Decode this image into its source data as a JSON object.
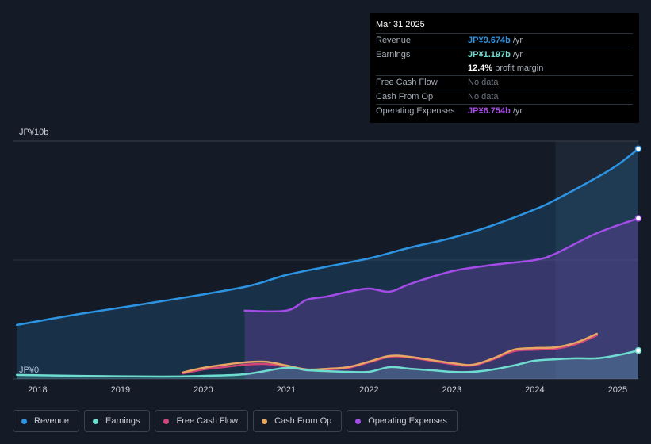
{
  "chart_data": {
    "type": "area",
    "title": "",
    "y_axis": {
      "top_label": "JP¥10b",
      "bottom_label": "JP¥0",
      "ylim": [
        0,
        10
      ]
    },
    "x_ticks": [
      "2018",
      "2019",
      "2020",
      "2021",
      "2022",
      "2023",
      "2024",
      "2025"
    ],
    "xlim": [
      2017.7,
      2025.25
    ],
    "forecast_start": 2024.25,
    "series": [
      {
        "name": "Revenue",
        "color": "#2d94e3",
        "fill": true,
        "x": [
          2017.75,
          2018.5,
          2019.5,
          2020.5,
          2021.0,
          2021.5,
          2022.0,
          2022.5,
          2023.0,
          2023.5,
          2024.0,
          2024.25,
          2024.75,
          2025.0,
          2025.25
        ],
        "values": [
          2.27,
          2.73,
          3.27,
          3.87,
          4.37,
          4.73,
          5.07,
          5.53,
          5.93,
          6.47,
          7.13,
          7.53,
          8.47,
          9.0,
          9.674
        ]
      },
      {
        "name": "Operating Expenses",
        "color": "#a44ce8",
        "fill": true,
        "x": [
          2020.5,
          2021.0,
          2021.25,
          2021.5,
          2021.75,
          2022.0,
          2022.25,
          2022.5,
          2023.0,
          2023.5,
          2024.0,
          2024.25,
          2024.75,
          2025.25
        ],
        "values": [
          2.87,
          2.87,
          3.33,
          3.47,
          3.67,
          3.8,
          3.67,
          4.0,
          4.53,
          4.8,
          5.0,
          5.27,
          6.13,
          6.754
        ]
      },
      {
        "name": "Cash From Op",
        "color": "#e8a664",
        "fill": false,
        "x": [
          2019.75,
          2020.0,
          2020.25,
          2020.5,
          2020.75,
          2021.0,
          2021.25,
          2021.5,
          2021.75,
          2022.0,
          2022.25,
          2022.5,
          2023.0,
          2023.25,
          2023.5,
          2023.75,
          2024.0,
          2024.25,
          2024.5,
          2024.75
        ],
        "values": [
          0.27,
          0.47,
          0.6,
          0.7,
          0.73,
          0.57,
          0.4,
          0.43,
          0.5,
          0.73,
          0.97,
          0.93,
          0.67,
          0.6,
          0.87,
          1.23,
          1.3,
          1.33,
          1.53,
          1.9
        ]
      },
      {
        "name": "Free Cash Flow",
        "color": "#d0447a",
        "fill": false,
        "x": [
          2019.75,
          2020.0,
          2020.25,
          2020.5,
          2020.75,
          2021.0,
          2021.25,
          2021.5,
          2021.75,
          2022.0,
          2022.25,
          2022.5,
          2023.0,
          2023.25,
          2023.5,
          2023.75,
          2024.0,
          2024.25,
          2024.5,
          2024.75
        ],
        "values": [
          0.23,
          0.4,
          0.5,
          0.6,
          0.63,
          0.53,
          0.37,
          0.4,
          0.47,
          0.7,
          0.93,
          0.9,
          0.63,
          0.57,
          0.83,
          1.17,
          1.23,
          1.27,
          1.47,
          1.83
        ]
      },
      {
        "name": "Earnings",
        "color": "#6fdcd0",
        "fill": true,
        "x": [
          2017.75,
          2018.5,
          2019.5,
          2020.0,
          2020.5,
          2021.0,
          2021.25,
          2021.5,
          2021.75,
          2022.0,
          2022.25,
          2022.5,
          2022.75,
          2023.0,
          2023.25,
          2023.5,
          2023.75,
          2024.0,
          2024.25,
          2024.5,
          2024.75,
          2025.0,
          2025.25
        ],
        "values": [
          0.17,
          0.13,
          0.1,
          0.13,
          0.2,
          0.47,
          0.37,
          0.33,
          0.3,
          0.3,
          0.5,
          0.43,
          0.37,
          0.3,
          0.3,
          0.4,
          0.57,
          0.77,
          0.83,
          0.87,
          0.87,
          1.0,
          1.197
        ]
      }
    ],
    "tooltip": {
      "date": "Mar 31 2025",
      "rows": [
        {
          "label": "Revenue",
          "value": "JP¥9.674b",
          "unit": "/yr"
        },
        {
          "label": "Earnings",
          "value": "JP¥1.197b",
          "unit": "/yr"
        },
        {
          "label": "",
          "value": "12.4%",
          "unit": "profit margin"
        },
        {
          "label": "Free Cash Flow",
          "value": "No data",
          "unit": ""
        },
        {
          "label": "Cash From Op",
          "value": "No data",
          "unit": ""
        },
        {
          "label": "Operating Expenses",
          "value": "JP¥6.754b",
          "unit": "/yr"
        }
      ]
    },
    "legend": [
      "Revenue",
      "Earnings",
      "Free Cash Flow",
      "Cash From Op",
      "Operating Expenses"
    ]
  },
  "colors": {
    "revenue": "#2d94e3",
    "earnings": "#6fdcd0",
    "free_cash_flow": "#d0447a",
    "cash_from_op": "#e8a664",
    "operating_expenses": "#a44ce8"
  }
}
